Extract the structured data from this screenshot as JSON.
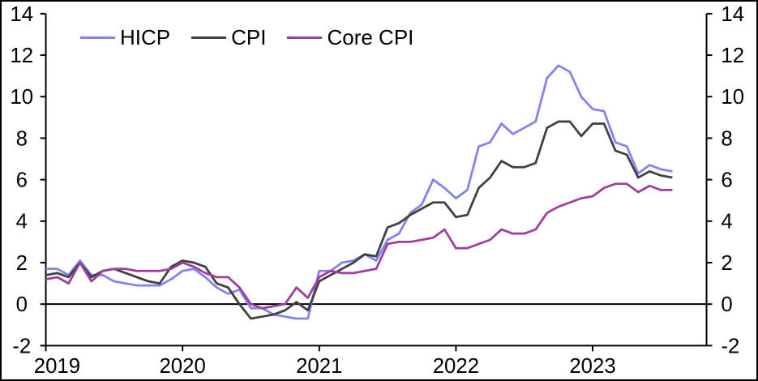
{
  "chart_data": {
    "type": "line",
    "title": "",
    "xlabel": "",
    "ylabel": "",
    "x_unit": "month",
    "x_start": "2019-01",
    "x_end": "2023-08",
    "xlim_months": 58,
    "ylim": [
      -2,
      14
    ],
    "yticks": [
      -2,
      0,
      2,
      4,
      6,
      8,
      10,
      12,
      14
    ],
    "xtick_years": [
      "2019",
      "2020",
      "2021",
      "2022",
      "2023"
    ],
    "grid": false,
    "zero_line": true,
    "dual_y_axis": true,
    "legend_position": "top-left",
    "axis_color": "#000000",
    "background_color": "#ffffff",
    "series": [
      {
        "name": "HICP",
        "color": "#8282f0",
        "values": [
          1.7,
          1.7,
          1.4,
          2.1,
          1.4,
          1.4,
          1.1,
          1.0,
          0.9,
          0.9,
          0.9,
          1.2,
          1.6,
          1.7,
          1.3,
          0.8,
          0.5,
          0.7,
          -0.2,
          -0.2,
          -0.5,
          -0.6,
          -0.7,
          -0.7,
          1.6,
          1.6,
          2.0,
          2.1,
          2.4,
          2.1,
          3.1,
          3.4,
          4.4,
          4.8,
          6.0,
          5.6,
          5.1,
          5.5,
          7.6,
          7.8,
          8.7,
          8.2,
          8.5,
          8.8,
          10.9,
          11.5,
          11.2,
          10.0,
          9.4,
          9.3,
          7.8,
          7.6,
          6.3,
          6.7,
          6.5,
          6.4
        ]
      },
      {
        "name": "CPI",
        "color": "#404040",
        "values": [
          1.4,
          1.5,
          1.3,
          2.0,
          1.3,
          1.6,
          1.7,
          1.5,
          1.3,
          1.1,
          1.0,
          1.8,
          2.1,
          2.0,
          1.8,
          1.0,
          0.8,
          0.0,
          -0.7,
          -0.6,
          -0.5,
          -0.3,
          0.1,
          -0.3,
          1.1,
          1.4,
          1.7,
          2.0,
          2.4,
          2.3,
          3.7,
          3.9,
          4.3,
          4.6,
          4.9,
          4.9,
          4.2,
          4.3,
          5.6,
          6.1,
          6.9,
          6.6,
          6.6,
          6.8,
          8.5,
          8.8,
          8.8,
          8.1,
          8.7,
          8.7,
          7.4,
          7.2,
          6.1,
          6.4,
          6.2,
          6.1
        ]
      },
      {
        "name": "Core CPI",
        "color": "#9e3f9e",
        "values": [
          1.2,
          1.3,
          1.0,
          2.0,
          1.1,
          1.6,
          1.7,
          1.7,
          1.6,
          1.6,
          1.6,
          1.7,
          2.0,
          1.8,
          1.5,
          1.3,
          1.3,
          0.8,
          0.0,
          -0.2,
          -0.1,
          0.0,
          0.8,
          0.3,
          1.3,
          1.6,
          1.5,
          1.5,
          1.6,
          1.7,
          2.9,
          3.0,
          3.0,
          3.1,
          3.2,
          3.6,
          2.7,
          2.7,
          2.9,
          3.1,
          3.6,
          3.4,
          3.4,
          3.6,
          4.4,
          4.7,
          4.9,
          5.1,
          5.2,
          5.6,
          5.8,
          5.8,
          5.4,
          5.7,
          5.5,
          5.5
        ]
      }
    ]
  }
}
